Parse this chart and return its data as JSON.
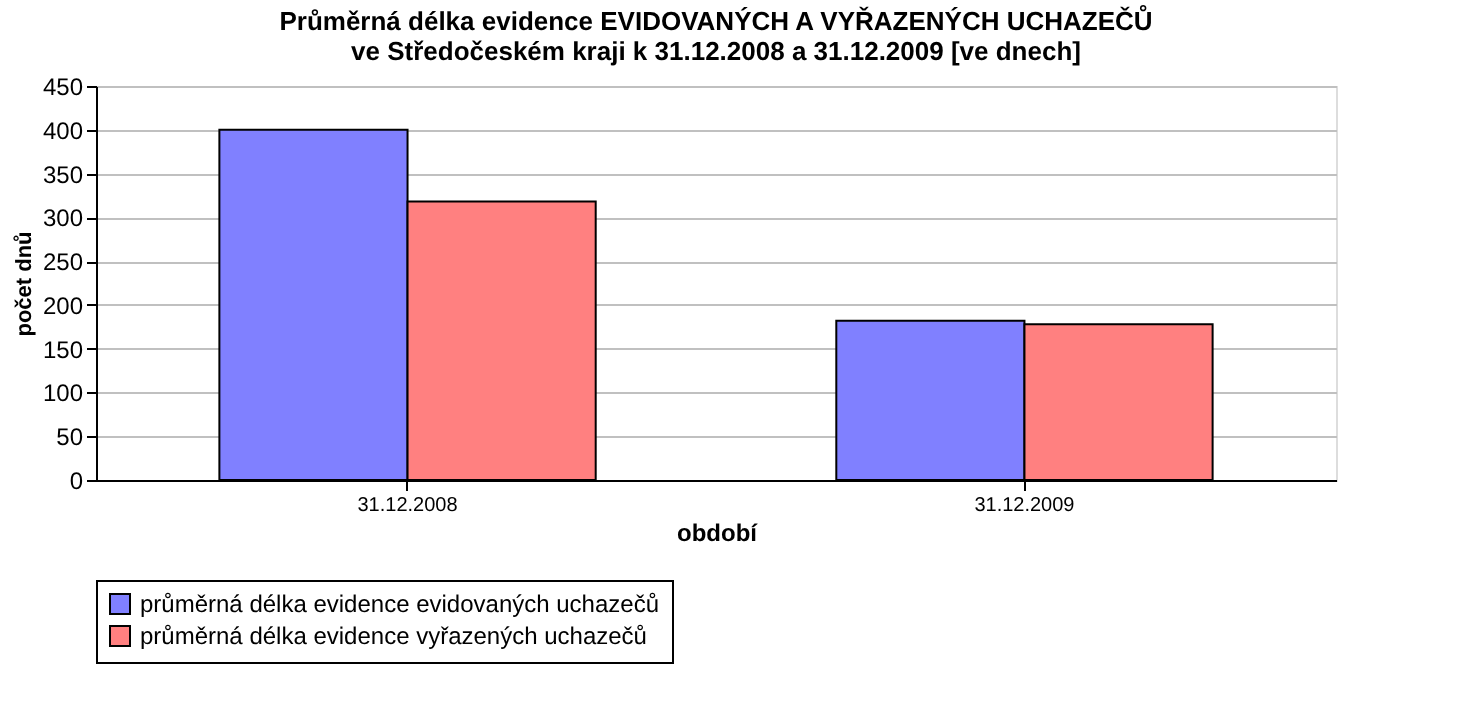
{
  "chart_data": {
    "type": "bar",
    "title": [
      "Průměrná délka evidence EVIDOVANÝCH A VYŘAZENÝCH UCHAZEČŮ",
      "ve Středočeském kraji k 31.12.2008 a 31.12.2009 [ve dnech]"
    ],
    "xlabel": "období",
    "ylabel": "počet dnů",
    "categories": [
      "31.12.2008",
      "31.12.2009"
    ],
    "series": [
      {
        "name": "průměrná délka evidence evidovaných uchazečů",
        "color": "#8080ff",
        "values": [
          400,
          182
        ]
      },
      {
        "name": "průměrná délka evidence vyřazených uchazečů",
        "color": "#ff8080",
        "values": [
          318,
          178
        ]
      }
    ],
    "ylim": [
      0,
      450
    ],
    "yticks": [
      0,
      50,
      100,
      150,
      200,
      250,
      300,
      350,
      400,
      450
    ],
    "grid": "y",
    "legend": "bottom left"
  }
}
